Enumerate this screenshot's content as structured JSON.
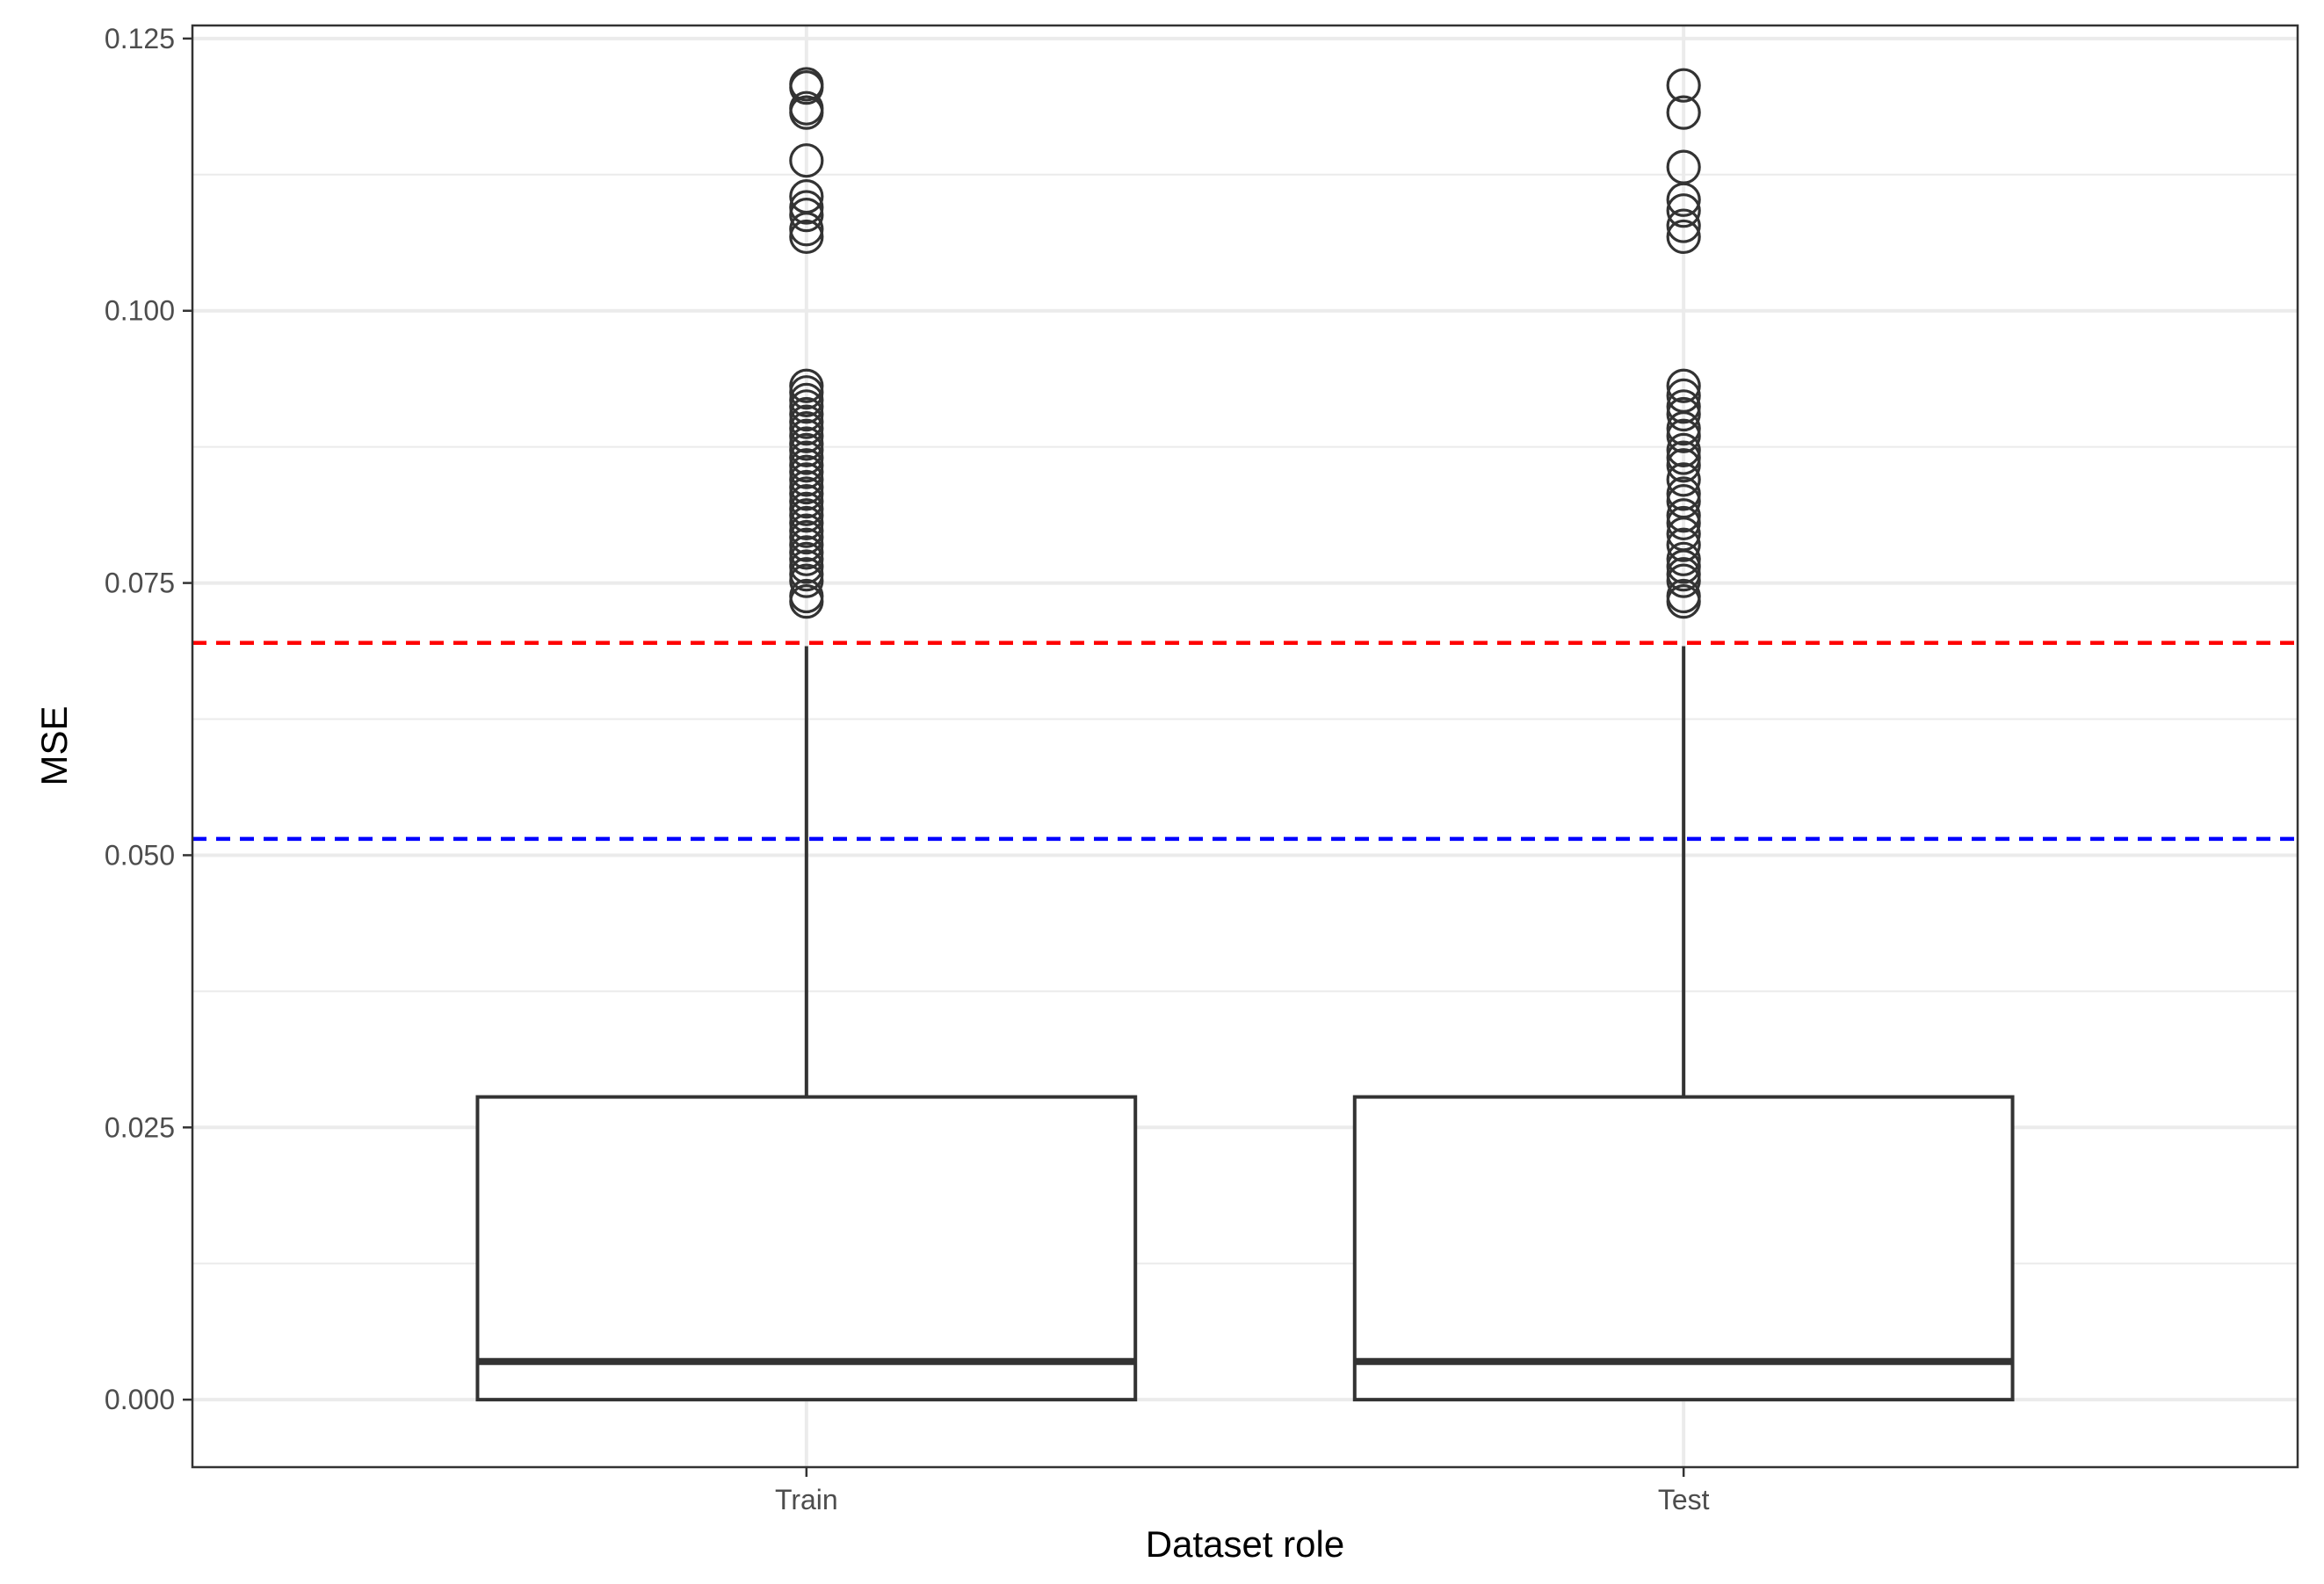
{
  "chart_data": {
    "type": "box",
    "xlabel": "Dataset role",
    "ylabel": "MSE",
    "categories": [
      "Train",
      "Test"
    ],
    "ylim": [
      -0.0062,
      0.1262
    ],
    "yticks": [
      0.0,
      0.025,
      0.05,
      0.075,
      0.1,
      0.125
    ],
    "ytick_labels": [
      "0.000",
      "0.025",
      "0.050",
      "0.075",
      "0.100",
      "0.125"
    ],
    "grid": true,
    "boxes": [
      {
        "category": "Train",
        "q1": 0.0,
        "median": 0.0035,
        "q3": 0.0278,
        "whisker_low": 0.0,
        "whisker_high": 0.0692,
        "outliers": [
          0.0733,
          0.0738,
          0.0752,
          0.0758,
          0.0765,
          0.0772,
          0.0778,
          0.0785,
          0.0792,
          0.0798,
          0.0805,
          0.0812,
          0.0818,
          0.0825,
          0.0832,
          0.0838,
          0.0845,
          0.0852,
          0.0858,
          0.0865,
          0.0872,
          0.0878,
          0.0885,
          0.0892,
          0.0898,
          0.0905,
          0.0912,
          0.0918,
          0.0925,
          0.0931,
          0.1068,
          0.1075,
          0.1088,
          0.1095,
          0.1105,
          0.1138,
          0.1182,
          0.1186,
          0.1205,
          0.1208
        ]
      },
      {
        "category": "Test",
        "q1": 0.0,
        "median": 0.0035,
        "q3": 0.0278,
        "whisker_low": 0.0,
        "whisker_high": 0.0692,
        "outliers": [
          0.0733,
          0.0738,
          0.0752,
          0.0758,
          0.0765,
          0.0772,
          0.0785,
          0.0795,
          0.0805,
          0.0812,
          0.0825,
          0.0832,
          0.0845,
          0.0858,
          0.0865,
          0.0872,
          0.0885,
          0.0892,
          0.0905,
          0.0912,
          0.0922,
          0.0931,
          0.1068,
          0.1078,
          0.1092,
          0.1102,
          0.1132,
          0.1182,
          0.1207
        ]
      }
    ],
    "reference_lines": [
      {
        "y": 0.0695,
        "color": "#ff0000",
        "style": "dashed"
      },
      {
        "y": 0.0515,
        "color": "#0000ff",
        "style": "dashed"
      }
    ],
    "colors": {
      "box_stroke": "#333333",
      "grid": "#ebebeb",
      "panel_border": "#333333"
    }
  }
}
